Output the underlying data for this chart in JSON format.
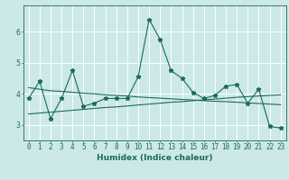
{
  "title": "",
  "xlabel": "Humidex (Indice chaleur)",
  "bg_color": "#cce8e8",
  "grid_color": "#ffffff",
  "line_color": "#1a6b5a",
  "x_data": [
    0,
    1,
    2,
    3,
    4,
    5,
    6,
    7,
    8,
    9,
    10,
    11,
    12,
    13,
    14,
    15,
    16,
    17,
    18,
    19,
    20,
    21,
    22,
    23
  ],
  "y_main": [
    3.85,
    4.4,
    3.2,
    3.85,
    4.75,
    3.6,
    3.7,
    3.85,
    3.85,
    3.85,
    4.55,
    6.4,
    5.75,
    4.75,
    4.5,
    4.05,
    3.85,
    3.95,
    4.25,
    4.3,
    3.7,
    4.15,
    2.95,
    2.9
  ],
  "y_trend1": [
    4.2,
    4.15,
    4.1,
    4.08,
    4.05,
    4.02,
    4.0,
    3.97,
    3.95,
    3.93,
    3.9,
    3.88,
    3.86,
    3.84,
    3.82,
    3.8,
    3.78,
    3.76,
    3.75,
    3.73,
    3.71,
    3.69,
    3.67,
    3.65
  ],
  "y_trend2": [
    3.35,
    3.38,
    3.41,
    3.44,
    3.47,
    3.5,
    3.53,
    3.56,
    3.58,
    3.61,
    3.64,
    3.67,
    3.7,
    3.73,
    3.75,
    3.78,
    3.81,
    3.83,
    3.86,
    3.89,
    3.91,
    3.93,
    3.95,
    3.97
  ],
  "xlim": [
    -0.5,
    23.5
  ],
  "ylim": [
    2.5,
    6.85
  ],
  "yticks": [
    3,
    4,
    5,
    6
  ],
  "xticks": [
    0,
    1,
    2,
    3,
    4,
    5,
    6,
    7,
    8,
    9,
    10,
    11,
    12,
    13,
    14,
    15,
    16,
    17,
    18,
    19,
    20,
    21,
    22,
    23
  ],
  "fontsize_label": 6.5,
  "fontsize_tick": 5.5,
  "markersize": 3.5
}
